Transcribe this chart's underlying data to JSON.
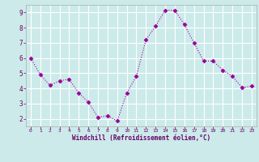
{
  "x": [
    0,
    1,
    2,
    3,
    4,
    5,
    6,
    7,
    8,
    9,
    10,
    11,
    12,
    13,
    14,
    15,
    16,
    17,
    18,
    19,
    20,
    21,
    22,
    23
  ],
  "y": [
    6.0,
    4.9,
    4.2,
    4.5,
    4.6,
    3.7,
    3.1,
    2.1,
    2.2,
    1.85,
    3.7,
    4.8,
    7.2,
    8.1,
    9.15,
    9.15,
    8.2,
    7.0,
    5.8,
    5.8,
    5.2,
    4.8,
    4.05,
    4.15
  ],
  "line_color": "#990099",
  "marker": "D",
  "marker_size": 2.5,
  "bg_color": "#cceaea",
  "grid_color": "#ffffff",
  "xlabel": "Windchill (Refroidissement éolien,°C)",
  "xlabel_color": "#660066",
  "tick_color": "#660066",
  "ylim": [
    1.5,
    9.5
  ],
  "xlim": [
    -0.5,
    23.5
  ],
  "yticks": [
    2,
    3,
    4,
    5,
    6,
    7,
    8,
    9
  ],
  "xticks": [
    0,
    1,
    2,
    3,
    4,
    5,
    6,
    7,
    8,
    9,
    10,
    11,
    12,
    13,
    14,
    15,
    16,
    17,
    18,
    19,
    20,
    21,
    22,
    23
  ],
  "figsize": [
    3.2,
    2.0
  ],
  "dpi": 100
}
